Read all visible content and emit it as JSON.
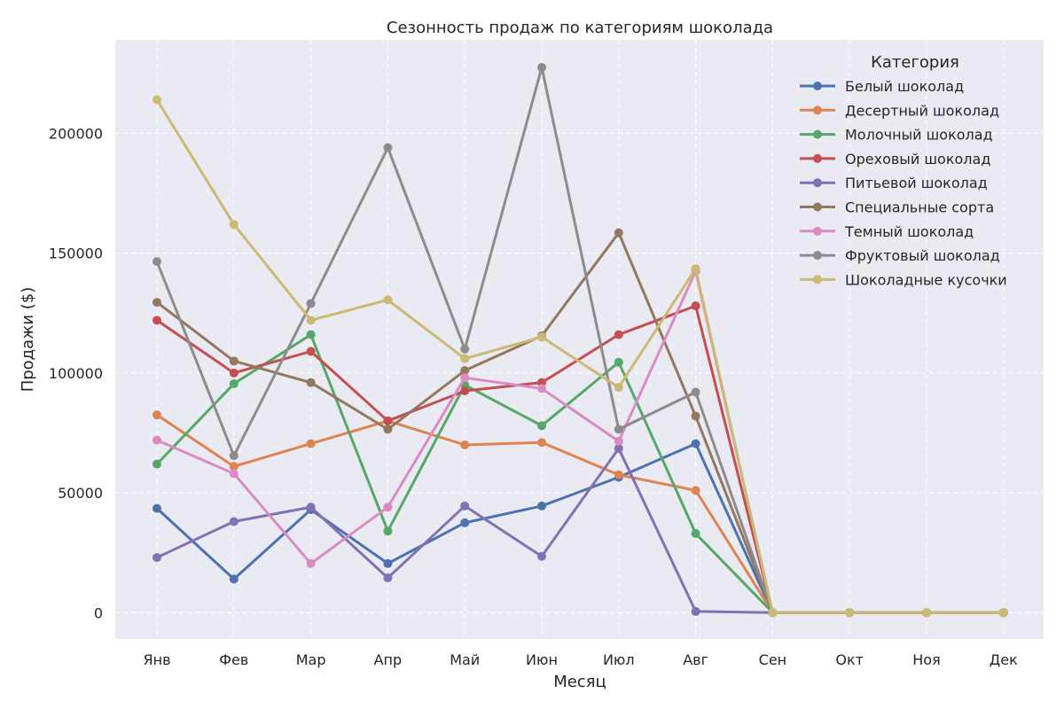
{
  "chart_data": {
    "type": "line",
    "title": "Сезонность продаж по категориям шоколада",
    "xlabel": "Месяц",
    "ylabel": "Продажи ($)",
    "categories": [
      "Янв",
      "Фев",
      "Мар",
      "Апр",
      "Май",
      "Июн",
      "Июл",
      "Авг",
      "Сен",
      "Окт",
      "Ноя",
      "Дек"
    ],
    "ylim": [
      -11000,
      239000
    ],
    "yticks": [
      0,
      50000,
      100000,
      150000,
      200000
    ],
    "grid": true,
    "legend": {
      "title": "Категория",
      "position": "top-right"
    },
    "series": [
      {
        "name": "Белый шоколад",
        "color": "#4c72b0",
        "values": [
          43500,
          14000,
          43000,
          20500,
          37500,
          44500,
          56500,
          70500,
          0,
          0,
          0,
          0
        ]
      },
      {
        "name": "Десертный шоколад",
        "color": "#dd8452",
        "values": [
          82500,
          61000,
          70500,
          80000,
          70000,
          71000,
          57500,
          51000,
          0,
          0,
          0,
          0
        ]
      },
      {
        "name": "Молочный шоколад",
        "color": "#55a868",
        "values": [
          62000,
          95500,
          116000,
          34000,
          95000,
          78000,
          104500,
          33000,
          0,
          0,
          0,
          0
        ]
      },
      {
        "name": "Ореховый шоколад",
        "color": "#c44e52",
        "values": [
          122000,
          100000,
          109000,
          80000,
          92500,
          96000,
          116000,
          128000,
          0,
          0,
          0,
          0
        ]
      },
      {
        "name": "Питьевой шоколад",
        "color": "#8172b3",
        "values": [
          23000,
          38000,
          44000,
          14500,
          44500,
          23500,
          68500,
          500,
          0,
          0,
          0,
          0
        ]
      },
      {
        "name": "Специальные сорта",
        "color": "#937860",
        "values": [
          129500,
          105000,
          96000,
          76500,
          101000,
          115500,
          158500,
          82000,
          0,
          0,
          0,
          0
        ]
      },
      {
        "name": "Темный шоколад",
        "color": "#da8bc3",
        "values": [
          72000,
          58000,
          20500,
          44000,
          98000,
          93500,
          71500,
          142500,
          0,
          0,
          0,
          0
        ]
      },
      {
        "name": "Фруктовый шоколад",
        "color": "#8c8c8c",
        "values": [
          146500,
          65500,
          129000,
          194000,
          110000,
          227500,
          76500,
          92000,
          0,
          0,
          0,
          0
        ]
      },
      {
        "name": "Шоколадные кусочки",
        "color": "#ccb974",
        "values": [
          214000,
          162000,
          122000,
          130500,
          106000,
          115000,
          94000,
          143500,
          0,
          0,
          0,
          0
        ]
      }
    ]
  }
}
